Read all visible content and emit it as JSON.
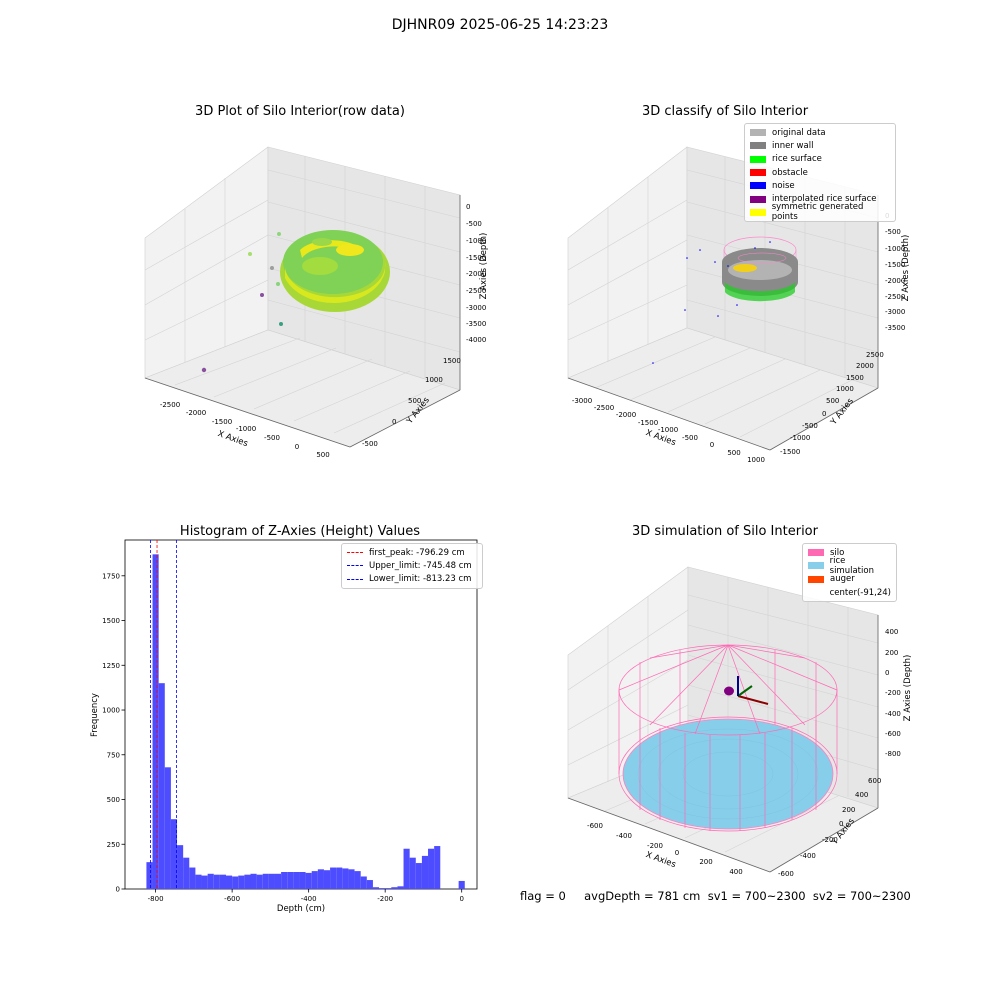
{
  "suptitle": "DJHNR09 2025-06-25 14:23:23",
  "chart_data": [
    {
      "type": "scatter",
      "title": "3D Plot of Silo Interior(row data)",
      "xlabel": "X Axies",
      "ylabel": "Y Axies",
      "zlabel": "Z Axies (Depth)",
      "x_ticks": [
        "-2500",
        "-2000",
        "-1500",
        "-1000",
        "-500",
        "0",
        "500"
      ],
      "y_ticks": [
        "-500",
        "0",
        "500",
        "1000",
        "1500"
      ],
      "z_ticks": [
        "0",
        "-500",
        "-1000",
        "-1500",
        "-2000",
        "-2500",
        "-3000",
        "-3500",
        "-4000"
      ],
      "colors": {
        "surface_light": "#d4e61a",
        "surface_mid": "#7ed45a",
        "outlier": "#8a4f9e"
      }
    },
    {
      "type": "scatter",
      "title": "3D classify of Silo Interior",
      "xlabel": "X Axies",
      "ylabel": "Y Axies",
      "zlabel": "Z Axies (Depth)",
      "x_ticks": [
        "-3000",
        "-2500",
        "-2000",
        "-1500",
        "-1000",
        "-500",
        "0",
        "500",
        "1000"
      ],
      "y_ticks": [
        "-1500",
        "-1000",
        "-500",
        "0",
        "500",
        "1000",
        "1500",
        "2000",
        "2500"
      ],
      "z_ticks": [
        "0",
        "-500",
        "-1000",
        "-1500",
        "-2000",
        "-2500",
        "-3000",
        "-3500"
      ],
      "legend_position": "top-right",
      "legend": [
        {
          "label": "original data",
          "color": "#b3b3b3"
        },
        {
          "label": "inner wall",
          "color": "#808080"
        },
        {
          "label": "rice surface",
          "color": "#00ff00"
        },
        {
          "label": "obstacle",
          "color": "#ff0000"
        },
        {
          "label": "noise",
          "color": "#0000ff"
        },
        {
          "label": "interpolated rice surface",
          "color": "#800080"
        },
        {
          "label": "symmetric generated points",
          "color": "#ffff00"
        }
      ]
    },
    {
      "type": "bar",
      "title": "Histogram of Z-Axies (Height) Values",
      "xlabel": "Depth (cm)",
      "ylabel": "Frequency",
      "xlim": [
        -880,
        40
      ],
      "ylim": [
        0,
        1950
      ],
      "x_ticks": [
        -800,
        -600,
        -400,
        -200,
        0
      ],
      "y_ticks": [
        0,
        250,
        500,
        750,
        1000,
        1250,
        1500,
        1750
      ],
      "bar_color": "#4d4dff",
      "bin_width": 16,
      "bin_starts": [
        -824,
        -808,
        -792,
        -776,
        -760,
        -744,
        -728,
        -712,
        -696,
        -680,
        -664,
        -648,
        -632,
        -616,
        -600,
        -584,
        -568,
        -552,
        -536,
        -520,
        -504,
        -488,
        -472,
        -456,
        -440,
        -424,
        -408,
        -392,
        -376,
        -360,
        -344,
        -328,
        -312,
        -296,
        -280,
        -264,
        -248,
        -232,
        -216,
        -200,
        -184,
        -168,
        -152,
        -136,
        -120,
        -104,
        -88,
        -72,
        -56,
        -40,
        -24,
        -8
      ],
      "values": [
        150,
        1870,
        1150,
        680,
        390,
        245,
        175,
        120,
        80,
        75,
        85,
        80,
        80,
        75,
        70,
        75,
        80,
        85,
        80,
        85,
        85,
        85,
        95,
        95,
        95,
        95,
        90,
        100,
        110,
        105,
        120,
        120,
        115,
        110,
        100,
        70,
        50,
        10,
        5,
        5,
        10,
        15,
        225,
        175,
        145,
        185,
        225,
        240,
        0,
        0,
        0,
        45
      ],
      "vlines": [
        {
          "label": "first_peak: -796.29 cm",
          "value": -796.29,
          "color": "#ff0000"
        },
        {
          "label": "Upper_limit: -745.48 cm",
          "value": -745.48,
          "color": "#0000ff"
        },
        {
          "label": "Lower_limit: -813.23 cm",
          "value": -813.23,
          "color": "#0000ff"
        }
      ],
      "legend_position": "top-right"
    },
    {
      "type": "scatter",
      "title": "3D simulation of Silo Interior",
      "xlabel": "X Axies",
      "ylabel": "Y Axies",
      "zlabel": "Z Axies (Depth)",
      "x_ticks": [
        "-600",
        "-400",
        "-200",
        "0",
        "200",
        "400"
      ],
      "y_ticks": [
        "-600",
        "-400",
        "-200",
        "0",
        "200",
        "400",
        "600"
      ],
      "z_ticks": [
        "400",
        "200",
        "0",
        "-200",
        "-400",
        "-600",
        "-800"
      ],
      "legend_position": "top-right",
      "legend": [
        {
          "label": "silo",
          "color": "#ff69b4"
        },
        {
          "label": "rice simulation",
          "color": "#87ceeb"
        },
        {
          "label": "auger",
          "color": "#ff4500"
        },
        {
          "label": "center(-91,24)",
          "color": "none"
        }
      ]
    }
  ],
  "status_line": "flag = 0     avgDepth = 781 cm  sv1 = 700~2300  sv2 = 700~2300"
}
